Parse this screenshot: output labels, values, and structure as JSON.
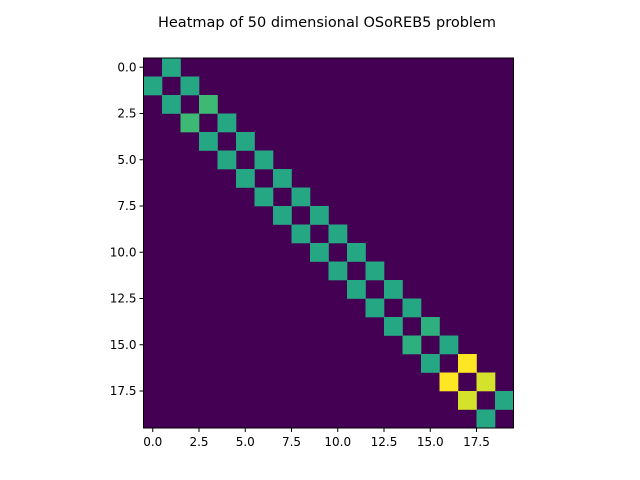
{
  "chart_data": {
    "type": "heatmap",
    "title": "Heatmap of 50 dimensional OSoREB5 problem",
    "xlabel": "",
    "ylabel": "",
    "rows": 20,
    "cols": 20,
    "colormap": "viridis",
    "xlim": [
      -0.5,
      19.5
    ],
    "ylim": [
      19.5,
      -0.5
    ],
    "xticks": [
      "0.0",
      "2.5",
      "5.0",
      "7.5",
      "10.0",
      "12.5",
      "15.0",
      "17.5"
    ],
    "yticks": [
      "0.0",
      "2.5",
      "5.0",
      "7.5",
      "10.0",
      "12.5",
      "15.0",
      "17.5"
    ],
    "vmin": 0,
    "vmax": 2.5,
    "nonzero_cells": [
      {
        "row": 0,
        "col": 1,
        "value": 1.5
      },
      {
        "row": 1,
        "col": 0,
        "value": 1.5
      },
      {
        "row": 1,
        "col": 2,
        "value": 1.5
      },
      {
        "row": 2,
        "col": 1,
        "value": 1.5
      },
      {
        "row": 2,
        "col": 3,
        "value": 1.7
      },
      {
        "row": 3,
        "col": 2,
        "value": 1.7
      },
      {
        "row": 3,
        "col": 4,
        "value": 1.5
      },
      {
        "row": 4,
        "col": 3,
        "value": 1.5
      },
      {
        "row": 4,
        "col": 5,
        "value": 1.5
      },
      {
        "row": 5,
        "col": 4,
        "value": 1.5
      },
      {
        "row": 5,
        "col": 6,
        "value": 1.5
      },
      {
        "row": 6,
        "col": 5,
        "value": 1.5
      },
      {
        "row": 6,
        "col": 7,
        "value": 1.5
      },
      {
        "row": 7,
        "col": 6,
        "value": 1.5
      },
      {
        "row": 7,
        "col": 8,
        "value": 1.5
      },
      {
        "row": 8,
        "col": 7,
        "value": 1.5
      },
      {
        "row": 8,
        "col": 9,
        "value": 1.5
      },
      {
        "row": 9,
        "col": 8,
        "value": 1.5
      },
      {
        "row": 9,
        "col": 10,
        "value": 1.5
      },
      {
        "row": 10,
        "col": 9,
        "value": 1.5
      },
      {
        "row": 10,
        "col": 11,
        "value": 1.5
      },
      {
        "row": 11,
        "col": 10,
        "value": 1.5
      },
      {
        "row": 11,
        "col": 12,
        "value": 1.5
      },
      {
        "row": 12,
        "col": 11,
        "value": 1.5
      },
      {
        "row": 12,
        "col": 13,
        "value": 1.5
      },
      {
        "row": 13,
        "col": 12,
        "value": 1.5
      },
      {
        "row": 13,
        "col": 14,
        "value": 1.5
      },
      {
        "row": 14,
        "col": 13,
        "value": 1.5
      },
      {
        "row": 14,
        "col": 15,
        "value": 1.6
      },
      {
        "row": 15,
        "col": 14,
        "value": 1.6
      },
      {
        "row": 15,
        "col": 16,
        "value": 1.5
      },
      {
        "row": 16,
        "col": 15,
        "value": 1.5
      },
      {
        "row": 16,
        "col": 17,
        "value": 2.5
      },
      {
        "row": 17,
        "col": 16,
        "value": 2.5
      },
      {
        "row": 17,
        "col": 18,
        "value": 2.35
      },
      {
        "row": 18,
        "col": 17,
        "value": 2.35
      },
      {
        "row": 18,
        "col": 19,
        "value": 1.5
      },
      {
        "row": 19,
        "col": 18,
        "value": 1.5
      }
    ],
    "grid": false,
    "colors": {
      "background_cell": "#440154",
      "axis": "#000000"
    }
  }
}
